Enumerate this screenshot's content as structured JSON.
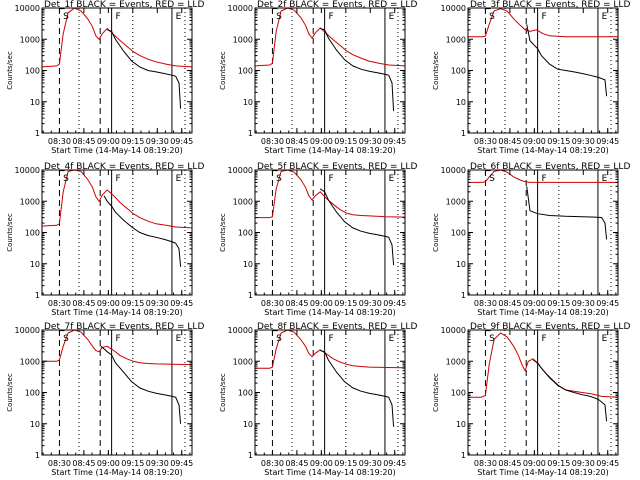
{
  "colors": {
    "events": "#000000",
    "lld": "#cc0000",
    "background": "#ffffff"
  },
  "xlabel": "Start Time (14-May-14 08:19:20)",
  "ylabel": "Counts/sec",
  "x_ticks": [
    "08:30",
    "08:45",
    "09:00",
    "09:15",
    "09:30",
    "09:45"
  ],
  "y_ticks": [
    "1",
    "10",
    "100",
    "1000",
    "10000"
  ],
  "chart_data": [
    {
      "type": "line",
      "title": "Det_1f BLACK = Events, RED = LLD",
      "x_unit": "minutes after 08:19:20",
      "xlim": [
        0,
        92
      ],
      "ylim": [
        1,
        10000
      ],
      "yscale": "log",
      "dashed_lines": [
        10.7,
        35.7
      ],
      "solid_lines": [
        42.7,
        79.7
      ],
      "dotted_lines": [
        22.7,
        55.7,
        87.7
      ],
      "markers": [
        {
          "label": "S",
          "x": 14.7
        },
        {
          "label": "F",
          "x": 46.7
        },
        {
          "label": "E",
          "x": 83.7
        }
      ],
      "series": [
        {
          "color": "red",
          "x": [
            0,
            9,
            10.7,
            13,
            16,
            20,
            24,
            28,
            31,
            33,
            35,
            37,
            40,
            44,
            48,
            52,
            56,
            60,
            65,
            70,
            76,
            82,
            92
          ],
          "values": [
            130,
            140,
            160,
            1500,
            7000,
            10000,
            8000,
            4500,
            2500,
            1300,
            1000,
            1500,
            2200,
            1400,
            900,
            600,
            400,
            300,
            230,
            190,
            160,
            140,
            130
          ]
        },
        {
          "color": "black",
          "x": [
            40,
            42.7,
            45,
            50,
            55,
            60,
            65,
            70,
            75,
            80,
            82,
            84,
            85
          ],
          "values": [
            2000,
            1800,
            1000,
            420,
            200,
            130,
            100,
            90,
            80,
            70,
            65,
            40,
            6
          ]
        }
      ]
    },
    {
      "type": "line",
      "title": "Det_2f BLACK = Events, RED = LLD",
      "x_unit": "minutes after 08:19:20",
      "xlim": [
        0,
        92
      ],
      "ylim": [
        1,
        10000
      ],
      "yscale": "log",
      "dashed_lines": [
        10.7,
        35.7
      ],
      "solid_lines": [
        42.7,
        79.7
      ],
      "dotted_lines": [
        22.7,
        55.7,
        87.7
      ],
      "markers": [
        {
          "label": "S",
          "x": 14.7
        },
        {
          "label": "F",
          "x": 46.7
        },
        {
          "label": "E",
          "x": 83.7
        }
      ],
      "series": [
        {
          "color": "red",
          "x": [
            0,
            9,
            10.7,
            13,
            16,
            20,
            24,
            28,
            31,
            33,
            35,
            37,
            40,
            44,
            48,
            52,
            56,
            60,
            65,
            70,
            76,
            82,
            92
          ],
          "values": [
            140,
            150,
            170,
            1800,
            8000,
            10000,
            8500,
            5000,
            2800,
            1500,
            1100,
            1600,
            2300,
            1500,
            950,
            650,
            430,
            320,
            250,
            200,
            170,
            150,
            140
          ]
        },
        {
          "color": "black",
          "x": [
            40,
            42.7,
            45,
            50,
            55,
            60,
            65,
            70,
            75,
            80,
            82,
            84,
            85
          ],
          "values": [
            2200,
            2000,
            1100,
            450,
            220,
            140,
            110,
            95,
            85,
            75,
            70,
            40,
            5
          ]
        }
      ]
    },
    {
      "type": "line",
      "title": "Det_3f BLACK = Events, RED = LLD",
      "x_unit": "minutes after 08:19:20",
      "xlim": [
        0,
        92
      ],
      "ylim": [
        1,
        10000
      ],
      "yscale": "log",
      "dashed_lines": [
        10.7,
        35.7
      ],
      "solid_lines": [
        42.7,
        79.7
      ],
      "dotted_lines": [
        22.7,
        55.7,
        87.7
      ],
      "markers": [
        {
          "label": "S",
          "x": 14.7
        },
        {
          "label": "F",
          "x": 46.7
        },
        {
          "label": "E",
          "x": 83.7
        }
      ],
      "series": [
        {
          "color": "red",
          "x": [
            0,
            9,
            10.7,
            13,
            16,
            20,
            24,
            28,
            32,
            35,
            38,
            42,
            46,
            50,
            60,
            70,
            92
          ],
          "values": [
            1200,
            1200,
            1250,
            3000,
            8000,
            9500,
            8000,
            4500,
            2800,
            2000,
            1800,
            2000,
            1500,
            1300,
            1200,
            1200,
            1200
          ]
        },
        {
          "color": "black",
          "x": [
            36,
            38,
            42.7,
            45,
            50,
            55,
            60,
            65,
            70,
            75,
            80,
            84,
            85
          ],
          "values": [
            3000,
            900,
            500,
            300,
            160,
            110,
            100,
            90,
            80,
            70,
            60,
            50,
            15
          ]
        }
      ]
    },
    {
      "type": "line",
      "title": "Det_4f BLACK = Events, RED = LLD",
      "x_unit": "minutes after 08:19:20",
      "xlim": [
        0,
        92
      ],
      "ylim": [
        1,
        10000
      ],
      "yscale": "log",
      "dashed_lines": [
        10.7,
        35.7
      ],
      "solid_lines": [
        42.7,
        79.7
      ],
      "dotted_lines": [
        22.7,
        55.7,
        87.7
      ],
      "markers": [
        {
          "label": "S",
          "x": 14.7
        },
        {
          "label": "F",
          "x": 46.7
        },
        {
          "label": "E",
          "x": 83.7
        }
      ],
      "series": [
        {
          "color": "red",
          "x": [
            0,
            9,
            10.7,
            13,
            16,
            20,
            24,
            28,
            31,
            33,
            35,
            37,
            40,
            44,
            48,
            52,
            56,
            60,
            65,
            70,
            76,
            82,
            92
          ],
          "values": [
            160,
            170,
            190,
            2000,
            9000,
            10000,
            9000,
            5000,
            2800,
            1400,
            1000,
            1600,
            2300,
            1500,
            900,
            600,
            400,
            300,
            230,
            190,
            170,
            150,
            140
          ]
        },
        {
          "color": "black",
          "x": [
            38,
            40,
            42.7,
            45,
            50,
            55,
            60,
            65,
            70,
            75,
            80,
            82,
            84,
            85
          ],
          "values": [
            1500,
            1000,
            700,
            450,
            250,
            150,
            100,
            80,
            70,
            60,
            50,
            45,
            30,
            8
          ]
        }
      ]
    },
    {
      "type": "line",
      "title": "Det_5f BLACK = Events, RED = LLD",
      "x_unit": "minutes after 08:19:20",
      "xlim": [
        0,
        92
      ],
      "ylim": [
        1,
        10000
      ],
      "yscale": "log",
      "dashed_lines": [
        10.7,
        35.7
      ],
      "solid_lines": [
        42.7,
        79.7
      ],
      "dotted_lines": [
        22.7,
        55.7,
        87.7
      ],
      "markers": [
        {
          "label": "S",
          "x": 14.7
        },
        {
          "label": "F",
          "x": 46.7
        },
        {
          "label": "E",
          "x": 83.7
        }
      ],
      "series": [
        {
          "color": "red",
          "x": [
            0,
            9,
            10.7,
            13,
            16,
            20,
            24,
            28,
            31,
            33,
            35,
            37,
            40,
            44,
            48,
            52,
            56,
            60,
            65,
            70,
            80,
            92
          ],
          "values": [
            300,
            300,
            320,
            2500,
            9000,
            10000,
            8500,
            5000,
            2800,
            1500,
            1100,
            1500,
            2000,
            1200,
            800,
            550,
            420,
            370,
            350,
            340,
            320,
            310
          ]
        },
        {
          "color": "black",
          "x": [
            40,
            42.7,
            45,
            50,
            55,
            60,
            65,
            70,
            75,
            80,
            82,
            84,
            85
          ],
          "values": [
            2500,
            2000,
            1100,
            450,
            220,
            140,
            110,
            95,
            85,
            75,
            70,
            40,
            9
          ]
        }
      ]
    },
    {
      "type": "line",
      "title": "Det_6f BLACK = Events, RED = LLD",
      "x_unit": "minutes after 08:19:20",
      "xlim": [
        0,
        92
      ],
      "ylim": [
        1,
        10000
      ],
      "yscale": "log",
      "dashed_lines": [
        10.7,
        35.7
      ],
      "solid_lines": [
        42.7,
        79.7
      ],
      "dotted_lines": [
        22.7,
        55.7,
        87.7
      ],
      "markers": [
        {
          "label": "S",
          "x": 14.7
        },
        {
          "label": "F",
          "x": 46.7
        },
        {
          "label": "E",
          "x": 83.7
        }
      ],
      "series": [
        {
          "color": "red",
          "x": [
            0,
            9,
            10.7,
            13,
            16,
            20,
            24,
            28,
            32,
            35,
            38,
            42,
            46,
            50,
            60,
            70,
            92
          ],
          "values": [
            4000,
            4000,
            4200,
            6000,
            9000,
            10000,
            8500,
            6000,
            4800,
            4200,
            4000,
            4000,
            4000,
            4000,
            4000,
            4000,
            4000
          ]
        },
        {
          "color": "black",
          "x": [
            36,
            38,
            42.7,
            50,
            60,
            70,
            78,
            82,
            84,
            85
          ],
          "values": [
            3000,
            500,
            400,
            350,
            330,
            320,
            310,
            300,
            200,
            60
          ]
        }
      ]
    },
    {
      "type": "line",
      "title": "Det_7f BLACK = Events, RED = LLD",
      "x_unit": "minutes after 08:19:20",
      "xlim": [
        0,
        92
      ],
      "ylim": [
        1,
        10000
      ],
      "yscale": "log",
      "dashed_lines": [
        10.7,
        35.7
      ],
      "solid_lines": [
        42.7,
        79.7
      ],
      "dotted_lines": [
        22.7,
        55.7,
        87.7
      ],
      "markers": [
        {
          "label": "S",
          "x": 14.7
        },
        {
          "label": "F",
          "x": 46.7
        },
        {
          "label": "E",
          "x": 83.7
        }
      ],
      "series": [
        {
          "color": "red",
          "x": [
            0,
            9,
            10.7,
            13,
            16,
            20,
            24,
            28,
            31,
            33,
            35,
            37,
            40,
            44,
            48,
            52,
            56,
            60,
            65,
            70,
            80,
            92
          ],
          "values": [
            1000,
            1000,
            1100,
            3000,
            8000,
            10000,
            8500,
            5000,
            3000,
            2200,
            2000,
            2800,
            3000,
            2200,
            1500,
            1200,
            1000,
            900,
            850,
            820,
            800,
            780
          ]
        },
        {
          "color": "black",
          "x": [
            36,
            38,
            40,
            42.7,
            45,
            50,
            55,
            60,
            65,
            70,
            75,
            80,
            82,
            84,
            85
          ],
          "values": [
            3000,
            2500,
            2000,
            1600,
            900,
            450,
            220,
            140,
            110,
            95,
            85,
            75,
            70,
            40,
            10
          ]
        }
      ]
    },
    {
      "type": "line",
      "title": "Det_8f BLACK = Events, RED = LLD",
      "x_unit": "minutes after 08:19:20",
      "xlim": [
        0,
        92
      ],
      "ylim": [
        1,
        10000
      ],
      "yscale": "log",
      "dashed_lines": [
        10.7,
        35.7
      ],
      "solid_lines": [
        42.7,
        79.7
      ],
      "dotted_lines": [
        22.7,
        55.7,
        87.7
      ],
      "markers": [
        {
          "label": "S",
          "x": 14.7
        },
        {
          "label": "F",
          "x": 46.7
        },
        {
          "label": "E",
          "x": 83.7
        }
      ],
      "series": [
        {
          "color": "red",
          "x": [
            0,
            9,
            10.7,
            13,
            16,
            20,
            24,
            28,
            31,
            33,
            35,
            37,
            40,
            44,
            48,
            52,
            56,
            60,
            65,
            70,
            80,
            92
          ],
          "values": [
            600,
            600,
            650,
            2500,
            8000,
            10000,
            8500,
            5000,
            3000,
            1800,
            1400,
            1800,
            2300,
            1700,
            1200,
            950,
            800,
            720,
            680,
            650,
            630,
            620
          ]
        },
        {
          "color": "black",
          "x": [
            40,
            42.7,
            45,
            50,
            55,
            60,
            65,
            70,
            75,
            80,
            82,
            84,
            85
          ],
          "values": [
            2200,
            2000,
            1100,
            450,
            220,
            140,
            110,
            95,
            85,
            75,
            70,
            40,
            8
          ]
        }
      ]
    },
    {
      "type": "line",
      "title": "Det_9f BLACK = Events, RED = LLD",
      "x_unit": "minutes after 08:19:20",
      "xlim": [
        0,
        92
      ],
      "ylim": [
        1,
        10000
      ],
      "yscale": "log",
      "dashed_lines": [
        10.7,
        35.7
      ],
      "solid_lines": [
        42.7,
        79.7
      ],
      "dotted_lines": [
        22.7,
        55.7,
        87.7
      ],
      "markers": [
        {
          "label": "S",
          "x": 14.7
        },
        {
          "label": "F",
          "x": 46.7
        },
        {
          "label": "E",
          "x": 83.7
        }
      ],
      "series": [
        {
          "color": "red",
          "x": [
            0,
            8,
            10.7,
            13,
            16,
            20,
            24,
            28,
            31,
            33,
            35,
            37,
            40,
            44,
            48,
            52,
            56,
            60,
            65,
            70,
            76,
            82,
            92
          ],
          "values": [
            70,
            70,
            80,
            800,
            5000,
            8000,
            6000,
            3000,
            1500,
            800,
            500,
            1000,
            1200,
            700,
            400,
            250,
            160,
            120,
            110,
            100,
            90,
            75,
            70
          ]
        },
        {
          "color": "black",
          "x": [
            40,
            42.7,
            45,
            50,
            55,
            60,
            65,
            70,
            75,
            80,
            84,
            85
          ],
          "values": [
            1100,
            900,
            600,
            300,
            170,
            120,
            100,
            85,
            75,
            60,
            40,
            12
          ]
        }
      ]
    }
  ]
}
